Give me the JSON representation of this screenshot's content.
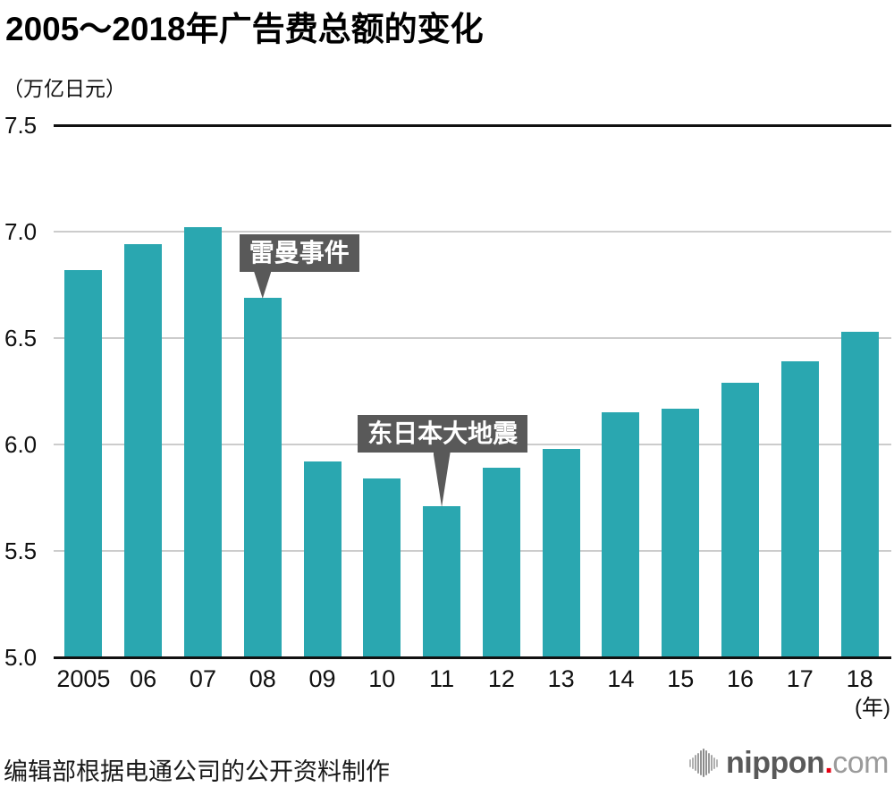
{
  "chart_data": {
    "type": "bar",
    "title": "2005～2018年广告费总额的变化",
    "unit_label": "（万亿日元）",
    "x_suffix_label": "(年)",
    "categories": [
      "2005",
      "06",
      "07",
      "08",
      "09",
      "10",
      "11",
      "12",
      "13",
      "14",
      "15",
      "16",
      "17",
      "18"
    ],
    "values": [
      6.82,
      6.94,
      7.02,
      6.69,
      5.92,
      5.84,
      5.71,
      5.89,
      5.98,
      6.15,
      6.17,
      6.29,
      6.39,
      6.53
    ],
    "ylim": [
      5.0,
      7.5
    ],
    "ytick_labels": [
      "7.5",
      "7.0",
      "6.5",
      "6.0",
      "5.5",
      "5.0"
    ],
    "grid": true,
    "legend_position": "none",
    "bar_color": "#2aa7b0",
    "annotations": [
      {
        "text": "雷曼事件",
        "target_category": "08",
        "target_value": 6.69
      },
      {
        "text": "东日本大地震",
        "target_category": "11",
        "target_value": 5.71
      }
    ],
    "annotation_bg": "#595959",
    "annotation_fg": "#ffffff"
  },
  "colors": {
    "bar": "#2aa7b0",
    "axis_line": "#111111",
    "gridline": "#cccccc",
    "annotation_bg": "#595959"
  },
  "footer": {
    "source": "编辑部根据电通公司的公开资料制作",
    "logo": {
      "brand": "nippon.com",
      "text_main": "nippon",
      "text_dot": ".",
      "text_tld": "com",
      "icon": "soundwave-icon",
      "color_main": "#595959",
      "color_dot": "#e60012",
      "color_tld": "#9b9b9b",
      "color_icon": "#8a8a8a"
    }
  }
}
